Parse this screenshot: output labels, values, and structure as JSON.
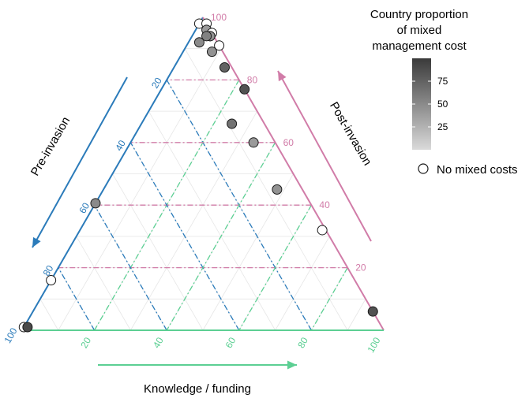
{
  "colors": {
    "pre": "#2b7bba",
    "post": "#d17ca8",
    "knowledge": "#5ccf93",
    "grid": "#e6e6e6",
    "point_stroke": "#1a1a1a"
  },
  "chart_data": {
    "type": "scatter",
    "subtype": "ternary",
    "axes": {
      "pre": {
        "title": "Pre-invasion",
        "ticks": [
          "20",
          "40",
          "60",
          "80",
          "100"
        ]
      },
      "post": {
        "title": "Post-invasion",
        "ticks": [
          "20",
          "40",
          "60",
          "80",
          "100"
        ]
      },
      "knowledge": {
        "title": "Knowledge / funding",
        "ticks": [
          "20",
          "40",
          "60",
          "80",
          "100"
        ]
      }
    },
    "legend": {
      "title_lines": [
        "Country proportion",
        "of mixed",
        "management cost"
      ],
      "colorbar_ticks": [
        "75",
        "50",
        "25"
      ],
      "colorbar_values": [
        75,
        50,
        25
      ],
      "colorbar_range": [
        0,
        100
      ],
      "no_mixed_label": "No mixed costs",
      "placement": "right"
    },
    "points": [
      {
        "pre": 2,
        "post": 98,
        "knowledge": 0,
        "mixed": null
      },
      {
        "pre": 0,
        "post": 98,
        "knowledge": 2,
        "mixed": null
      },
      {
        "pre": 1,
        "post": 96,
        "knowledge": 3,
        "mixed": 40
      },
      {
        "pre": 0,
        "post": 95,
        "knowledge": 5,
        "mixed": null
      },
      {
        "pre": 1,
        "post": 94,
        "knowledge": 5,
        "mixed": null
      },
      {
        "pre": 1,
        "post": 94,
        "knowledge": 5,
        "mixed": 45
      },
      {
        "pre": 2,
        "post": 94,
        "knowledge": 4,
        "mixed": 55
      },
      {
        "pre": 5,
        "post": 92,
        "knowledge": 3,
        "mixed": 50
      },
      {
        "pre": 0,
        "post": 91,
        "knowledge": 9,
        "mixed": null
      },
      {
        "pre": 3,
        "post": 89,
        "knowledge": 8,
        "mixed": 45
      },
      {
        "pre": 2,
        "post": 84,
        "knowledge": 14,
        "mixed": 75
      },
      {
        "pre": 0,
        "post": 77,
        "knowledge": 23,
        "mixed": 85
      },
      {
        "pre": 9,
        "post": 66,
        "knowledge": 25,
        "mixed": 65
      },
      {
        "pre": 6,
        "post": 60,
        "knowledge": 34,
        "mixed": 40
      },
      {
        "pre": 7,
        "post": 45,
        "knowledge": 48,
        "mixed": 45
      },
      {
        "pre": 1,
        "post": 32,
        "knowledge": 67,
        "mixed": null
      },
      {
        "pre": 0,
        "post": 6,
        "knowledge": 94,
        "mixed": 85
      },
      {
        "pre": 60,
        "post": 41,
        "knowledge": 0,
        "mixed": 50
      },
      {
        "pre": 84,
        "post": 16,
        "knowledge": 0,
        "mixed": null
      },
      {
        "pre": 99,
        "post": 1,
        "knowledge": 0,
        "mixed": null
      },
      {
        "pre": 98,
        "post": 1,
        "knowledge": 1,
        "mixed": 90
      }
    ]
  }
}
